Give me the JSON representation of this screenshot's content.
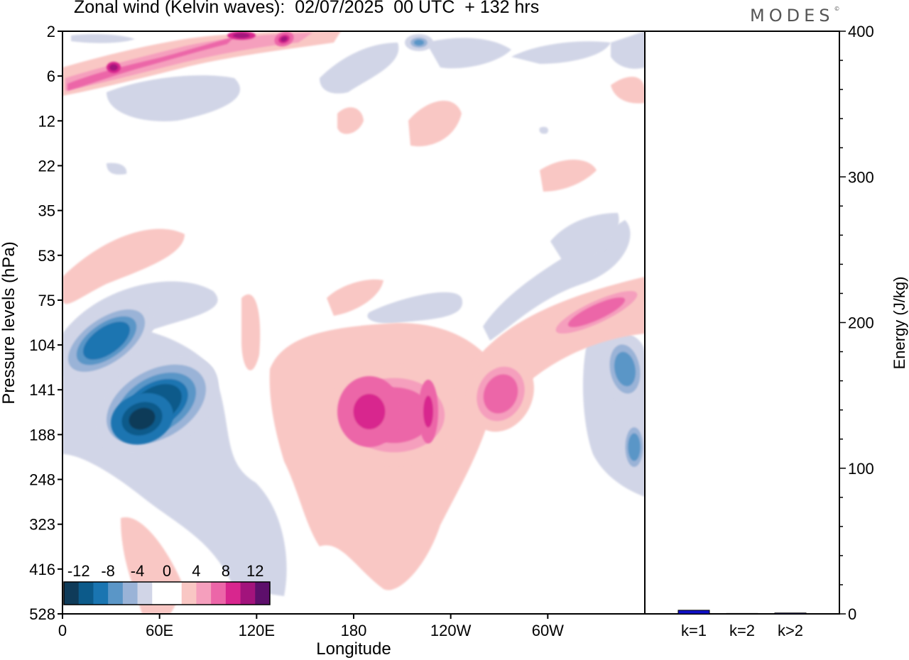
{
  "page": {
    "title": "Zonal wind (Kelvin waves):  02/07/2025  00 UTC  + 132 hrs",
    "logo": "MODES"
  },
  "chart_data": [
    {
      "type": "heatmap",
      "title": "Zonal wind (Kelvin waves):  02/07/2025  00 UTC  + 132 hrs",
      "xlabel": "Longitude",
      "ylabel": "Pressure levels (hPa)",
      "x_ticks": [
        "0",
        "60E",
        "120E",
        "180",
        "120W",
        "60W"
      ],
      "x_tick_degrees": [
        0,
        60,
        120,
        180,
        240,
        300
      ],
      "x_range_degrees": [
        0,
        360
      ],
      "y_ticks": [
        "2",
        "6",
        "12",
        "22",
        "35",
        "53",
        "75",
        "104",
        "141",
        "188",
        "248",
        "323",
        "416",
        "528"
      ],
      "y_order": "top-to-bottom",
      "colorbar": {
        "labels": [
          "-12",
          "-8",
          "-4",
          "0",
          "4",
          "8",
          "12"
        ],
        "levels": [
          -14,
          -12,
          -10,
          -8,
          -6,
          -4,
          -2,
          0,
          2,
          4,
          6,
          8,
          10,
          12,
          14
        ],
        "colors": [
          "#0f3b59",
          "#0c5a8a",
          "#1a75b1",
          "#5a96c7",
          "#9ab3d7",
          "#d1d5e7",
          "#ffffff",
          "#ffffff",
          "#f9c7c4",
          "#f59fbd",
          "#ec66a8",
          "#d8268e",
          "#a2137c",
          "#5d0f6b"
        ]
      },
      "features": [
        {
          "label": "stratosphere positive band",
          "value": 10,
          "lon": [
            2,
            140
          ],
          "level": [
            2,
            8
          ]
        },
        {
          "label": "upper negative cells",
          "value": -4,
          "lon": [
            190,
            360
          ],
          "level": [
            2,
            10
          ]
        },
        {
          "label": "lower stratosphere negative core",
          "value": -10,
          "lon": [
            10,
            85
          ],
          "level": [
            75,
            200
          ]
        },
        {
          "label": "deep negative core",
          "value": -11,
          "lon": [
            35,
            75
          ],
          "level": [
            125,
            250
          ]
        },
        {
          "label": "tropospheric positive maximum",
          "value": 8,
          "lon": [
            170,
            240
          ],
          "level": [
            104,
            250
          ]
        },
        {
          "label": "eastern positive maximum",
          "value": 8,
          "lon": [
            250,
            285
          ],
          "level": [
            104,
            200
          ]
        },
        {
          "label": "tilted positive band",
          "value": 5,
          "lon": [
            285,
            360
          ],
          "level": [
            60,
            120
          ]
        },
        {
          "label": "broad positive troposphere",
          "value": 3,
          "lon": [
            130,
            270
          ],
          "level": [
            104,
            500
          ]
        },
        {
          "label": "lower negative region",
          "value": -3,
          "lon": [
            0,
            140
          ],
          "level": [
            188,
            500
          ]
        }
      ]
    },
    {
      "type": "bar",
      "categories": [
        "k=1",
        "k=2",
        "k>2"
      ],
      "values": [
        2.5,
        0.3,
        0.6
      ],
      "ylabel": "Energy (J/kg)",
      "ylim": [
        0,
        400
      ],
      "y_ticks": [
        "0",
        "100",
        "200",
        "300",
        "400"
      ],
      "bar_color": "#1010c8"
    }
  ]
}
